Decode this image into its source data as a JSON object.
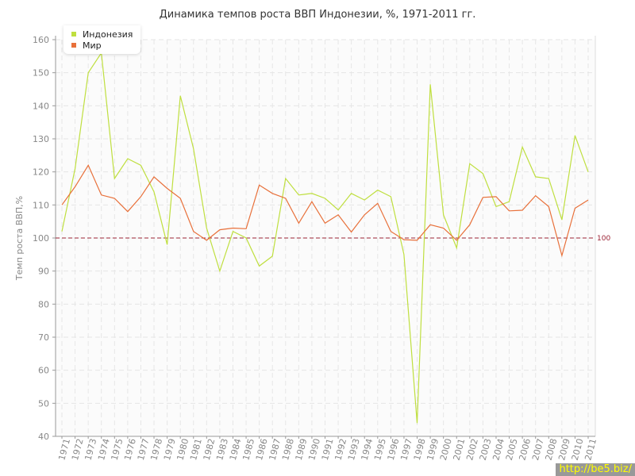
{
  "chart_data": {
    "type": "line",
    "title": "Динамика темпов роста ВВП Индонезии, %, 1971-2011 гг.",
    "xlabel": "",
    "ylabel": "Темп роста ВВП,%",
    "ylim": [
      40,
      160
    ],
    "yticks": [
      40,
      50,
      60,
      70,
      80,
      90,
      100,
      110,
      120,
      130,
      140,
      150,
      160
    ],
    "grid": true,
    "legend_position": "top-left",
    "x": [
      "1971",
      "1972",
      "1973",
      "1974",
      "1975",
      "1976",
      "1977",
      "1978",
      "1979",
      "1980",
      "1981",
      "1982",
      "1983",
      "1984",
      "1985",
      "1986",
      "1987",
      "1988",
      "1989",
      "1990",
      "1991",
      "1992",
      "1993",
      "1994",
      "1995",
      "1996",
      "1997",
      "1998",
      "1999",
      "2000",
      "2001",
      "2002",
      "2003",
      "2004",
      "2005",
      "2006",
      "2007",
      "2008",
      "2009",
      "2010",
      "2011"
    ],
    "series": [
      {
        "name": "Индонезия",
        "color": "#bfdf3f",
        "values": [
          102,
          121,
          150,
          156,
          118,
          124,
          122,
          114,
          98,
          143,
          127,
          103,
          90,
          102,
          100,
          91.5,
          94.5,
          118,
          113,
          113.5,
          112,
          108.5,
          113.5,
          111.5,
          114.5,
          112.5,
          95,
          44,
          146.5,
          107,
          97,
          122.5,
          119.5,
          109.5,
          111,
          127.5,
          118.5,
          118,
          105.5,
          131,
          120
        ]
      },
      {
        "name": "Мир",
        "color": "#e8703a",
        "values": [
          110,
          115.5,
          122,
          113,
          112,
          108,
          112.5,
          118.5,
          115,
          112,
          102,
          99.3,
          102.5,
          103,
          102.8,
          116,
          113.5,
          112,
          104.5,
          111,
          104.5,
          107,
          101.8,
          107,
          110.5,
          102,
          99.5,
          99.3,
          104,
          103,
          99.3,
          104,
          112.3,
          112.5,
          108.2,
          108.4,
          112.8,
          109.5,
          94.7,
          109,
          111.5
        ]
      }
    ],
    "reference_line": {
      "value": 100,
      "label": "100",
      "color": "#9b2335"
    }
  },
  "watermark": "http://be5.biz/"
}
